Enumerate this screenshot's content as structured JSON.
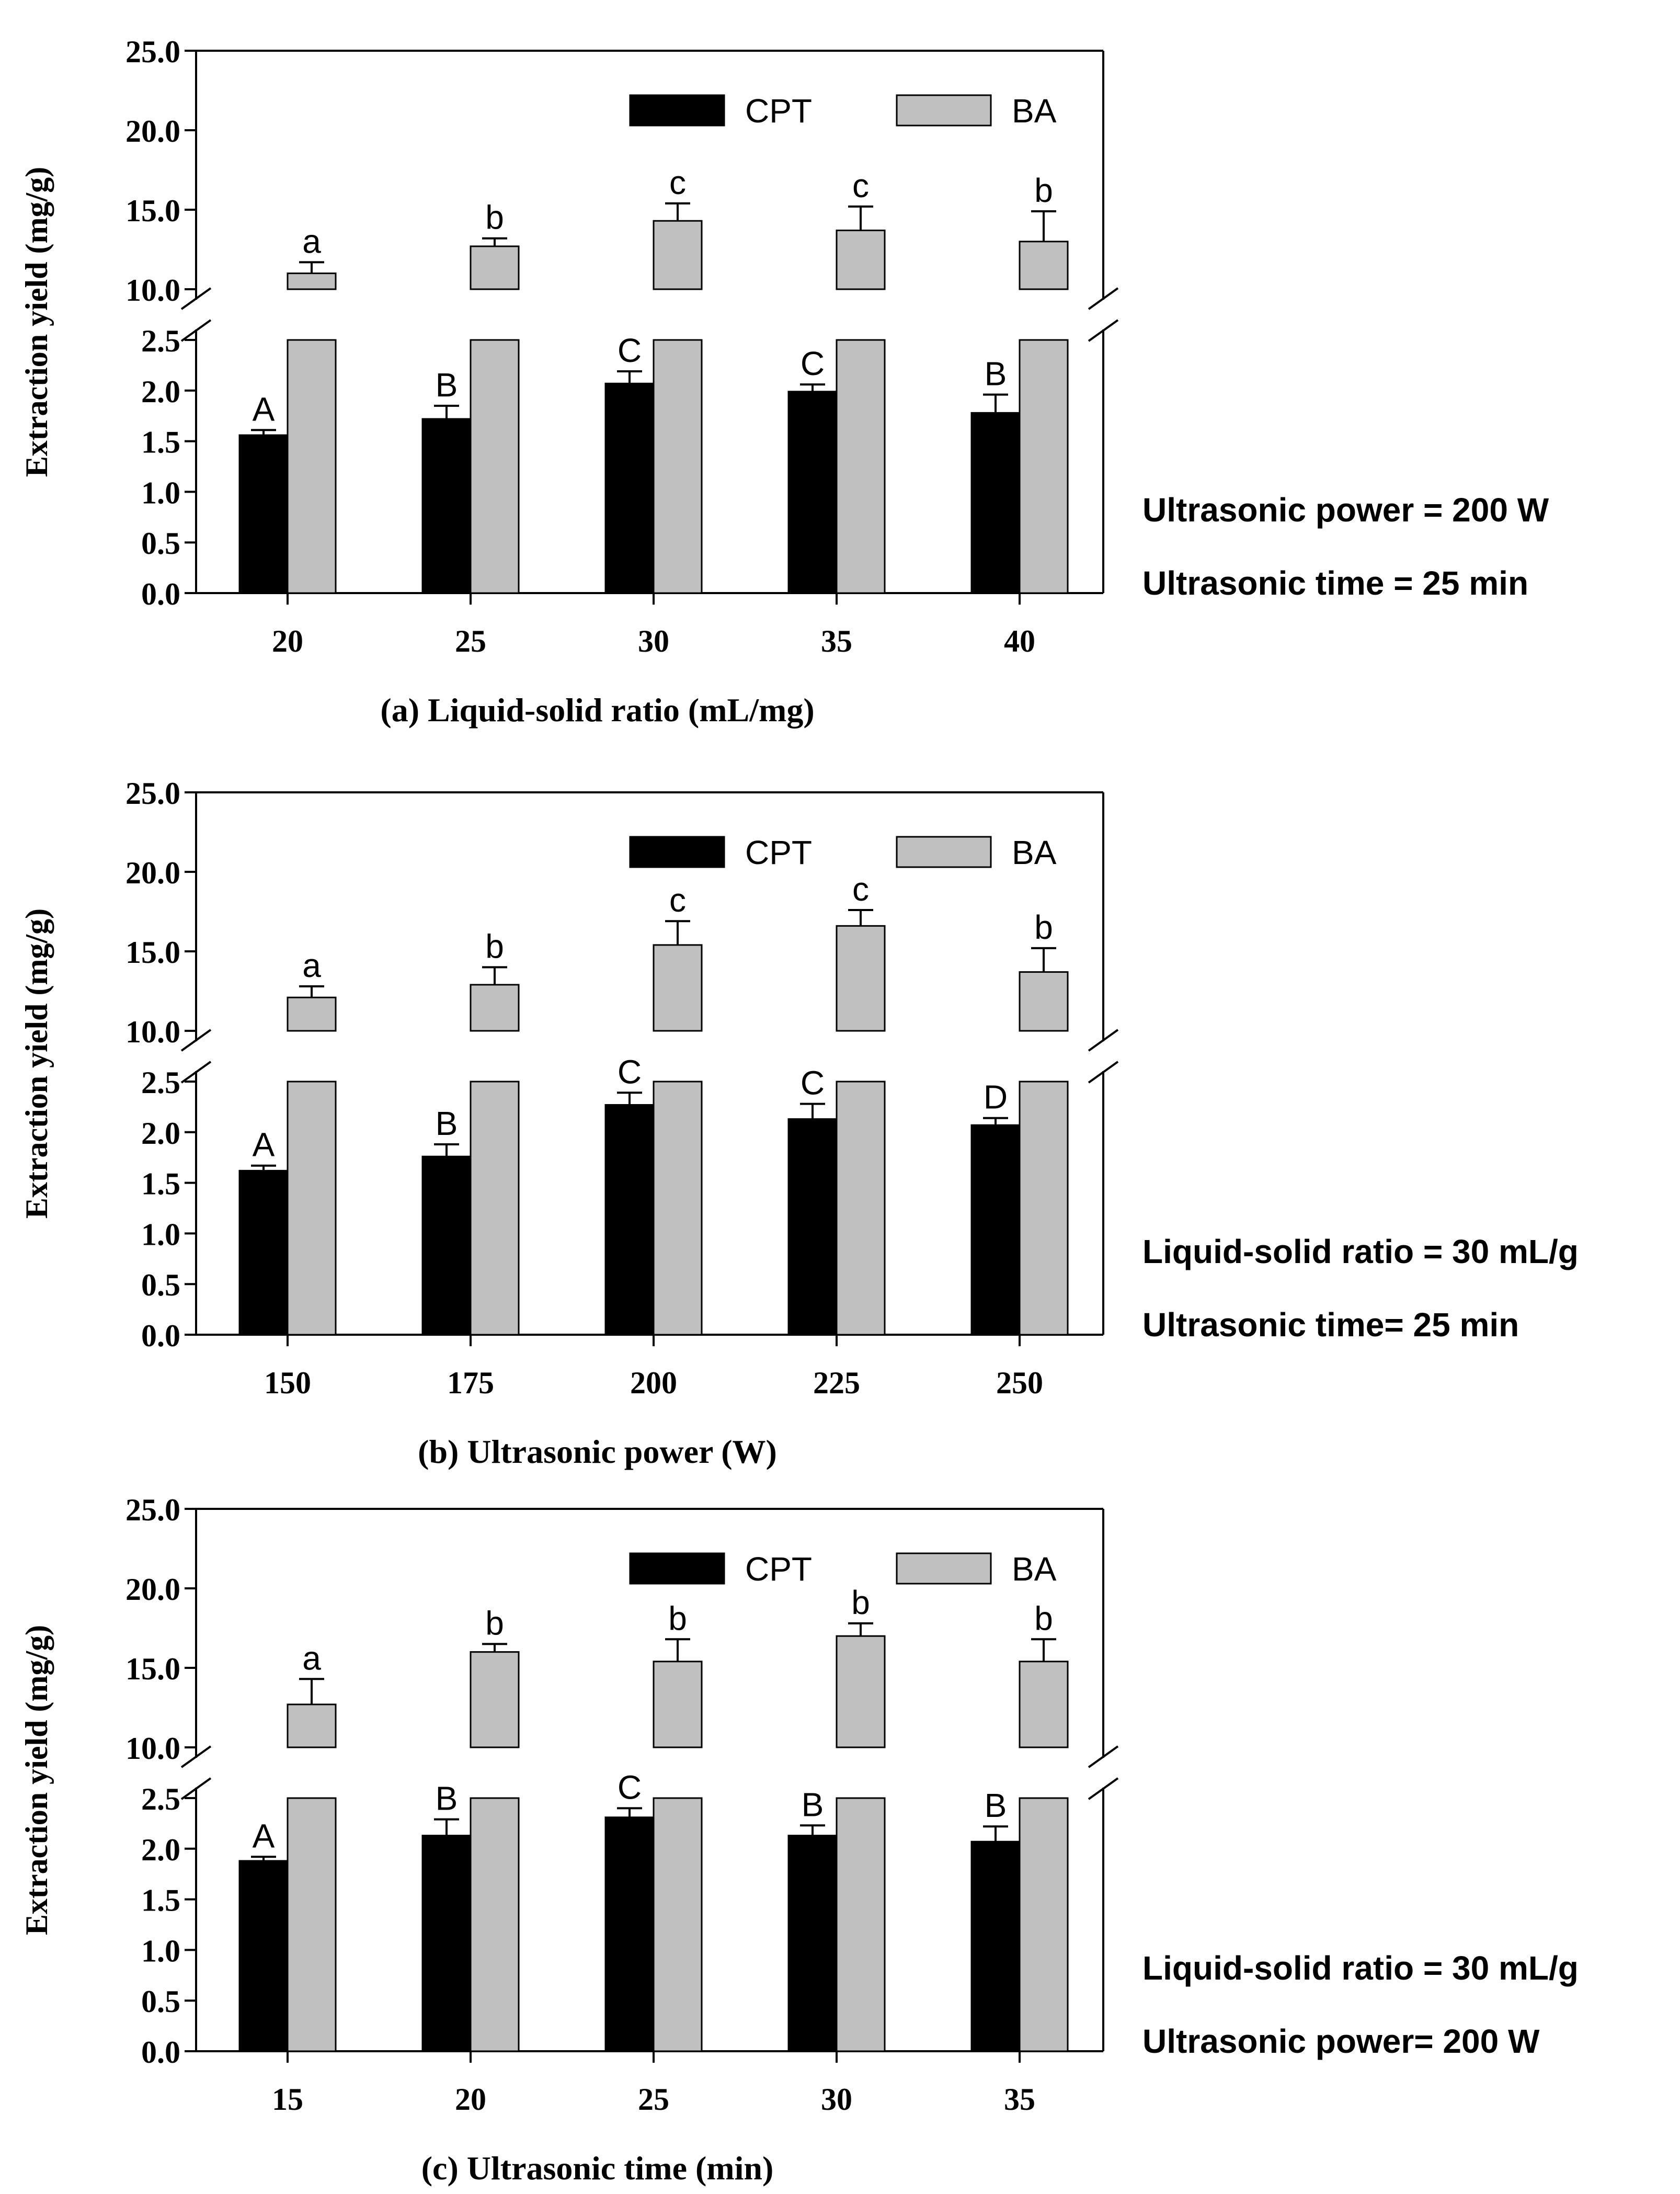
{
  "chart_data": [
    {
      "type": "bar",
      "panel": "a",
      "title": "",
      "xlabel": "(a) Liquid-solid ratio (mL/mg)",
      "ylabel": "Extraction yield (mg/g)",
      "categories": [
        "20",
        "25",
        "30",
        "35",
        "40"
      ],
      "axis_break": {
        "lower_range": [
          0,
          2.5
        ],
        "upper_range": [
          10,
          25
        ]
      },
      "lower_ticks": [
        "0.0",
        "0.5",
        "1.0",
        "1.5",
        "2.0",
        "2.5"
      ],
      "upper_ticks": [
        "10.0",
        "15.0",
        "20.0",
        "25.0"
      ],
      "series": [
        {
          "name": "CPT",
          "color": "#000000",
          "values": [
            1.56,
            1.72,
            2.07,
            1.99,
            1.78
          ],
          "errors": [
            0.05,
            0.13,
            0.12,
            0.07,
            0.18
          ],
          "labels": [
            "A",
            "B",
            "C",
            "C",
            "B"
          ]
        },
        {
          "name": "BA",
          "color": "#c0c0c0",
          "values": [
            11.0,
            12.7,
            14.3,
            13.7,
            13.0
          ],
          "errors": [
            0.7,
            0.5,
            1.1,
            1.5,
            1.9
          ],
          "labels": [
            "a",
            "b",
            "c",
            "c",
            "b"
          ]
        }
      ],
      "annotations": [
        "Ultrasonic power = 200 W",
        "Ultrasonic time = 25 min"
      ]
    },
    {
      "type": "bar",
      "panel": "b",
      "title": "",
      "xlabel": "(b) Ultrasonic power (W)",
      "ylabel": "Extraction yield (mg/g)",
      "categories": [
        "150",
        "175",
        "200",
        "225",
        "250"
      ],
      "axis_break": {
        "lower_range": [
          0,
          2.5
        ],
        "upper_range": [
          10,
          25
        ]
      },
      "lower_ticks": [
        "0.0",
        "0.5",
        "1.0",
        "1.5",
        "2.0",
        "2.5"
      ],
      "upper_ticks": [
        "10.0",
        "15.0",
        "20.0",
        "25.0"
      ],
      "series": [
        {
          "name": "CPT",
          "color": "#000000",
          "values": [
            1.62,
            1.76,
            2.27,
            2.13,
            2.07
          ],
          "errors": [
            0.05,
            0.12,
            0.12,
            0.15,
            0.07
          ],
          "labels": [
            "A",
            "B",
            "C",
            "C",
            "D"
          ]
        },
        {
          "name": "BA",
          "color": "#c0c0c0",
          "values": [
            12.1,
            12.9,
            15.4,
            16.6,
            13.7
          ],
          "errors": [
            0.7,
            1.1,
            1.5,
            1.0,
            1.5
          ],
          "labels": [
            "a",
            "b",
            "c",
            "c",
            "b"
          ]
        }
      ],
      "annotations": [
        "Liquid-solid ratio = 30 mL/g",
        "Ultrasonic time= 25 min"
      ]
    },
    {
      "type": "bar",
      "panel": "c",
      "title": "",
      "xlabel": "(c) Ultrasonic time (min)",
      "ylabel": "Extraction yield (mg/g)",
      "categories": [
        "15",
        "20",
        "25",
        "30",
        "35"
      ],
      "axis_break": {
        "lower_range": [
          0,
          2.5
        ],
        "upper_range": [
          10,
          25
        ]
      },
      "lower_ticks": [
        "0.0",
        "0.5",
        "1.0",
        "1.5",
        "2.0",
        "2.5"
      ],
      "upper_ticks": [
        "10.0",
        "15.0",
        "20.0",
        "25.0"
      ],
      "series": [
        {
          "name": "CPT",
          "color": "#000000",
          "values": [
            1.88,
            2.13,
            2.31,
            2.13,
            2.07
          ],
          "errors": [
            0.04,
            0.16,
            0.09,
            0.1,
            0.15
          ],
          "labels": [
            "A",
            "B",
            "C",
            "B",
            "B"
          ]
        },
        {
          "name": "BA",
          "color": "#c0c0c0",
          "values": [
            12.7,
            16.0,
            15.4,
            17.0,
            15.4
          ],
          "errors": [
            1.6,
            0.5,
            1.4,
            0.8,
            1.4
          ],
          "labels": [
            "a",
            "b",
            "b",
            "b",
            "b"
          ]
        }
      ],
      "annotations": [
        "Liquid-solid ratio = 30 mL/g",
        "Ultrasonic power= 200 W"
      ]
    }
  ]
}
